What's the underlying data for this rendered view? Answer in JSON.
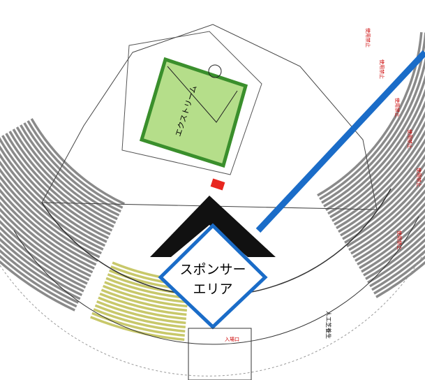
{
  "labels": {
    "sponsor_area": [
      "スポンサー",
      "エリア"
    ],
    "field": "エクストリーム",
    "restricted": "使用禁止",
    "entrance": "入場口",
    "turf": "人工芝養生"
  }
}
